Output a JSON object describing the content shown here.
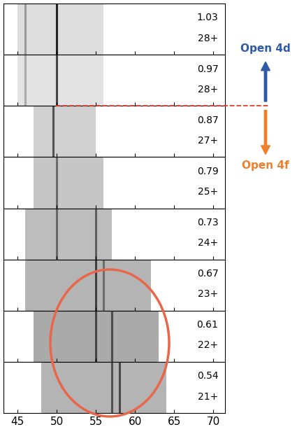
{
  "chart_data": {
    "type": "stacked_spectra",
    "xlim": [
      43.2,
      71.5
    ],
    "xticks": [
      45,
      50,
      55,
      60,
      65,
      70
    ],
    "tick_labels": "x",
    "panels": [
      {
        "energy": 1.03,
        "charge": "28+",
        "bands": [
          {
            "range": [
              45,
              56
            ],
            "intensity": 0.18
          }
        ],
        "lines": [
          {
            "x": 50,
            "intensity": 0.85
          },
          {
            "x": 46,
            "intensity": 0.3
          }
        ]
      },
      {
        "energy": 0.97,
        "charge": "28+",
        "bands": [
          {
            "range": [
              45,
              56
            ],
            "intensity": 0.15
          }
        ],
        "lines": [
          {
            "x": 50,
            "intensity": 0.7
          },
          {
            "x": 46,
            "intensity": 0.25
          }
        ]
      },
      {
        "energy": 0.87,
        "charge": "27+",
        "bands": [
          {
            "range": [
              47,
              55
            ],
            "intensity": 0.25
          }
        ],
        "lines": [
          {
            "x": 49.5,
            "intensity": 0.6
          }
        ]
      },
      {
        "energy": 0.79,
        "charge": "25+",
        "bands": [
          {
            "range": [
              47,
              56
            ],
            "intensity": 0.3
          }
        ],
        "lines": [
          {
            "x": 50,
            "intensity": 0.45
          }
        ]
      },
      {
        "energy": 0.73,
        "charge": "24+",
        "bands": [
          {
            "range": [
              46,
              57
            ],
            "intensity": 0.35
          }
        ],
        "lines": [
          {
            "x": 50,
            "intensity": 0.45
          },
          {
            "x": 55,
            "intensity": 0.5
          }
        ]
      },
      {
        "energy": 0.67,
        "charge": "23+",
        "bands": [
          {
            "range": [
              46,
              62
            ],
            "intensity": 0.4
          }
        ],
        "lines": [
          {
            "x": 55,
            "intensity": 0.65
          },
          {
            "x": 56,
            "intensity": 0.4
          }
        ]
      },
      {
        "energy": 0.61,
        "charge": "22+",
        "bands": [
          {
            "range": [
              47,
              63
            ],
            "intensity": 0.45
          }
        ],
        "lines": [
          {
            "x": 55,
            "intensity": 0.6
          },
          {
            "x": 57,
            "intensity": 0.55
          }
        ]
      },
      {
        "energy": 0.54,
        "charge": "21+",
        "bands": [
          {
            "range": [
              48,
              64
            ],
            "intensity": 0.4
          }
        ],
        "lines": [
          {
            "x": 57,
            "intensity": 0.55
          },
          {
            "x": 58,
            "intensity": 0.6
          }
        ]
      }
    ],
    "annotations": [
      {
        "text": "Open 4d",
        "color": "#2e5aa8"
      },
      {
        "text": "Open 4f",
        "color": "#f07f2b"
      }
    ]
  }
}
